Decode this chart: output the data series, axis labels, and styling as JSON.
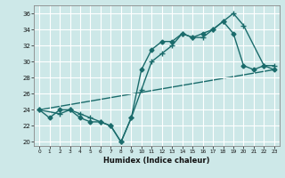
{
  "xlabel": "Humidex (Indice chaleur)",
  "bg_color": "#cde8e8",
  "line_color": "#1a6b6b",
  "grid_color": "#ffffff",
  "xlim": [
    -0.5,
    23.5
  ],
  "ylim": [
    19.5,
    37
  ],
  "xticks": [
    0,
    1,
    2,
    3,
    4,
    5,
    6,
    7,
    8,
    9,
    10,
    11,
    12,
    13,
    14,
    15,
    16,
    17,
    18,
    19,
    20,
    21,
    22,
    23
  ],
  "yticks": [
    20,
    22,
    24,
    26,
    28,
    30,
    32,
    34,
    36
  ],
  "line1_x": [
    0,
    1,
    2,
    3,
    4,
    5,
    6,
    7,
    8,
    9,
    10,
    11,
    12,
    13,
    14,
    15,
    16,
    17,
    18,
    19,
    20,
    21,
    22,
    23
  ],
  "line1_y": [
    24,
    23,
    24,
    24,
    23,
    22.5,
    22.5,
    22,
    20,
    23,
    29,
    31.5,
    32.5,
    32.5,
    33.5,
    33,
    33.5,
    34,
    35,
    33.5,
    29.5,
    29,
    29.5,
    29
  ],
  "line2_x": [
    0,
    2,
    3,
    4,
    5,
    6,
    7,
    8,
    9,
    10,
    11,
    12,
    13,
    14,
    15,
    16,
    17,
    18,
    19,
    20,
    22,
    23
  ],
  "line2_y": [
    24,
    23.5,
    24,
    23.5,
    23,
    22.5,
    22,
    20,
    23,
    26.5,
    30,
    31,
    32,
    33.5,
    33,
    33,
    34,
    35,
    36,
    34.5,
    29.5,
    29.5
  ],
  "line3_x": [
    0,
    23
  ],
  "line3_y": [
    24,
    29
  ],
  "marker_size": 2.5,
  "line_width": 1.0
}
